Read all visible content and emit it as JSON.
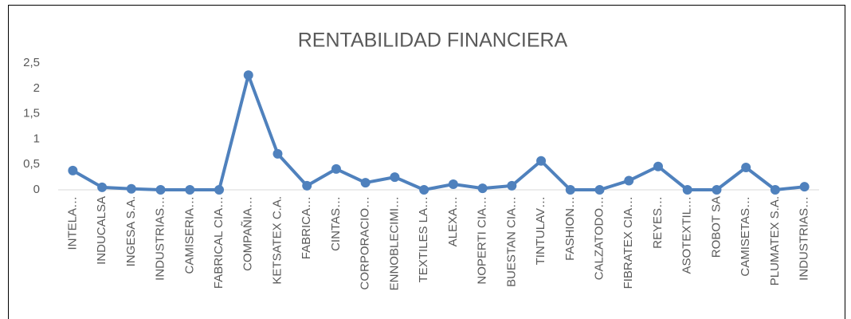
{
  "chart_data": {
    "type": "line",
    "title": "RENTABILIDAD FINANCIERA",
    "categories": [
      "INTELA…",
      "INDUCALSA",
      "INGESA S.A.",
      "INDUSTRIAS…",
      "CAMISERIA…",
      "FABRICAL CIA…",
      "COMPAÑIA…",
      "KETSATEX C.A.",
      "FABRICA…",
      "CINTAS…",
      "CORPORACIO…",
      "ENNOBLECIMI…",
      "TEXTILES LA…",
      "ALEXA…",
      "NOPERTI CIA…",
      "BUESTAN CIA…",
      "TINTULAV…",
      "FASHION…",
      "CALZATODO…",
      "FIBRATEX CIA…",
      "REYES…",
      "ASOTEXTIL…",
      "ROBOT SA",
      "CAMISETAS…",
      "PLUMATEX S.A.",
      "INDUSTRIAS…"
    ],
    "values": [
      0.38,
      0.05,
      0.02,
      0,
      0,
      0,
      2.26,
      0.71,
      0.08,
      0.41,
      0.14,
      0.25,
      0,
      0.11,
      0.03,
      0.08,
      0.57,
      0,
      0,
      0.18,
      0.46,
      0,
      0,
      0.44,
      0,
      0.06
    ],
    "color": "#4f81bd",
    "ylim": [
      0,
      2.5
    ],
    "yticks": [
      0,
      {
        "value": 0.5,
        "label": "0,5"
      },
      1,
      {
        "value": 1.5,
        "label": "1,5"
      },
      2,
      {
        "value": 2.5,
        "label": "2,5"
      }
    ],
    "grid": false
  }
}
